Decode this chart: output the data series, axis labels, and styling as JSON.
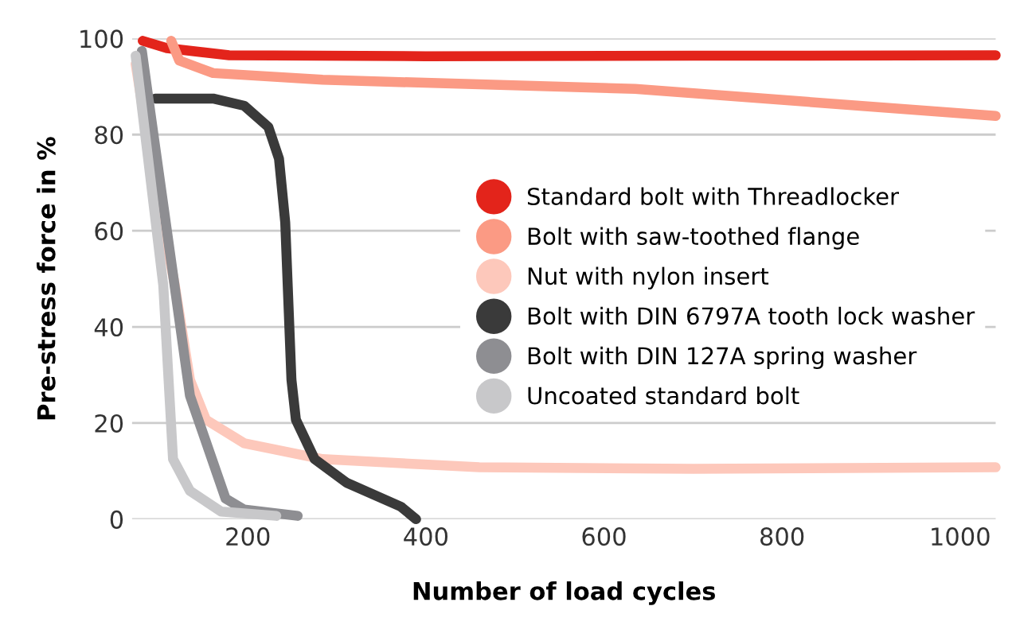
{
  "chart_data": {
    "type": "line",
    "xlabel": "Number of load cycles",
    "ylabel": "Pre-stress force in %",
    "xlim": [
      70,
      1040
    ],
    "ylim": [
      0,
      100
    ],
    "xticks": [
      200,
      400,
      600,
      800,
      1000
    ],
    "yticks": [
      0,
      20,
      40,
      60,
      80,
      100
    ],
    "grid": "y",
    "legend": "right",
    "marker": "none",
    "line_style": "solid",
    "series": [
      {
        "name": "Standard bolt with Threadlocker",
        "color": "#e3241b",
        "x": [
          82,
          109,
          179,
          400,
          700,
          1040
        ],
        "values": [
          99.5,
          98,
          96.5,
          96.3,
          96.4,
          96.5
        ]
      },
      {
        "name": "Bolt with saw-toothed flange",
        "color": "#fb9a84",
        "x": [
          114,
          123,
          161,
          284,
          635,
          1040
        ],
        "values": [
          99.5,
          95.4,
          92.8,
          91.4,
          89.5,
          83.9
        ]
      },
      {
        "name": "Nut with nylon insert",
        "color": "#fdc8bb",
        "x": [
          74,
          91,
          118,
          135,
          153,
          196,
          284,
          460,
          700,
          1040
        ],
        "values": [
          94.7,
          75,
          48.7,
          29,
          20.7,
          15.8,
          12.5,
          10.8,
          10.5,
          10.8
        ]
      },
      {
        "name": "Bolt with DIN 6797A tooth lock washer",
        "color": "#3a3a3a",
        "x": [
          96,
          161,
          196,
          223,
          235,
          242,
          249,
          254,
          275,
          311,
          372,
          389
        ],
        "values": [
          87.5,
          87.5,
          86,
          81.6,
          75,
          61.8,
          29,
          20.7,
          12.5,
          7.6,
          2.6,
          0
        ]
      },
      {
        "name": "Bolt with DIN 127A spring washer",
        "color": "#8e8e92",
        "x": [
          81,
          88,
          135,
          175,
          196,
          256
        ],
        "values": [
          97.4,
          88,
          25.7,
          4.3,
          2,
          0.7
        ]
      },
      {
        "name": "Uncoated standard bolt",
        "color": "#c8c8ca",
        "x": [
          74,
          88,
          105,
          116,
          135,
          170,
          232
        ],
        "values": [
          96.4,
          75,
          48.7,
          12.5,
          5.9,
          1.6,
          0.7
        ]
      }
    ]
  }
}
